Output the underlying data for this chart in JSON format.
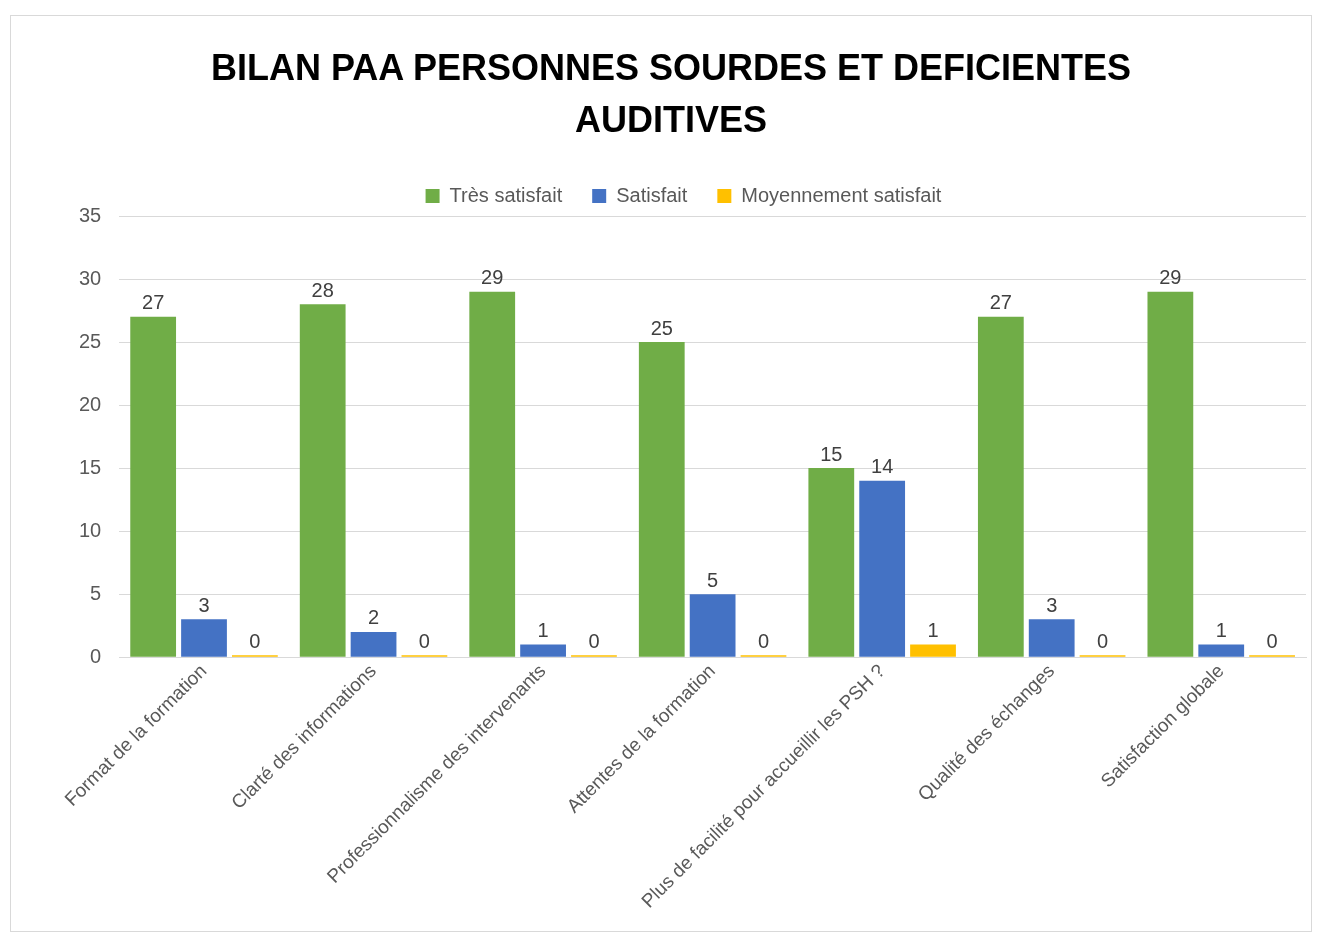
{
  "chart_data": {
    "type": "bar",
    "title": "BILAN PAA PERSONNES SOURDES ET DEFICIENTES AUDITIVES",
    "categories": [
      "Format de la formation",
      "Clarté des informations",
      "Professionnalisme des intervenants",
      "Attentes de la formation",
      "Plus de facilité pour accueillir les PSH ?",
      "Qualité des échanges",
      "Satisfaction globale"
    ],
    "series": [
      {
        "name": "Très satisfait",
        "color": "#70ad47",
        "values": [
          27,
          28,
          29,
          25,
          15,
          27,
          29
        ]
      },
      {
        "name": "Satisfait",
        "color": "#4472c4",
        "values": [
          3,
          2,
          1,
          5,
          14,
          3,
          1
        ]
      },
      {
        "name": "Moyennement satisfait",
        "color": "#ffc000",
        "values": [
          0,
          0,
          0,
          0,
          1,
          0,
          0
        ]
      }
    ],
    "ylim": [
      0,
      35
    ],
    "yticks": [
      0,
      5,
      10,
      15,
      20,
      25,
      30,
      35
    ],
    "grid": "y",
    "legend": "top",
    "data_labels": true
  }
}
